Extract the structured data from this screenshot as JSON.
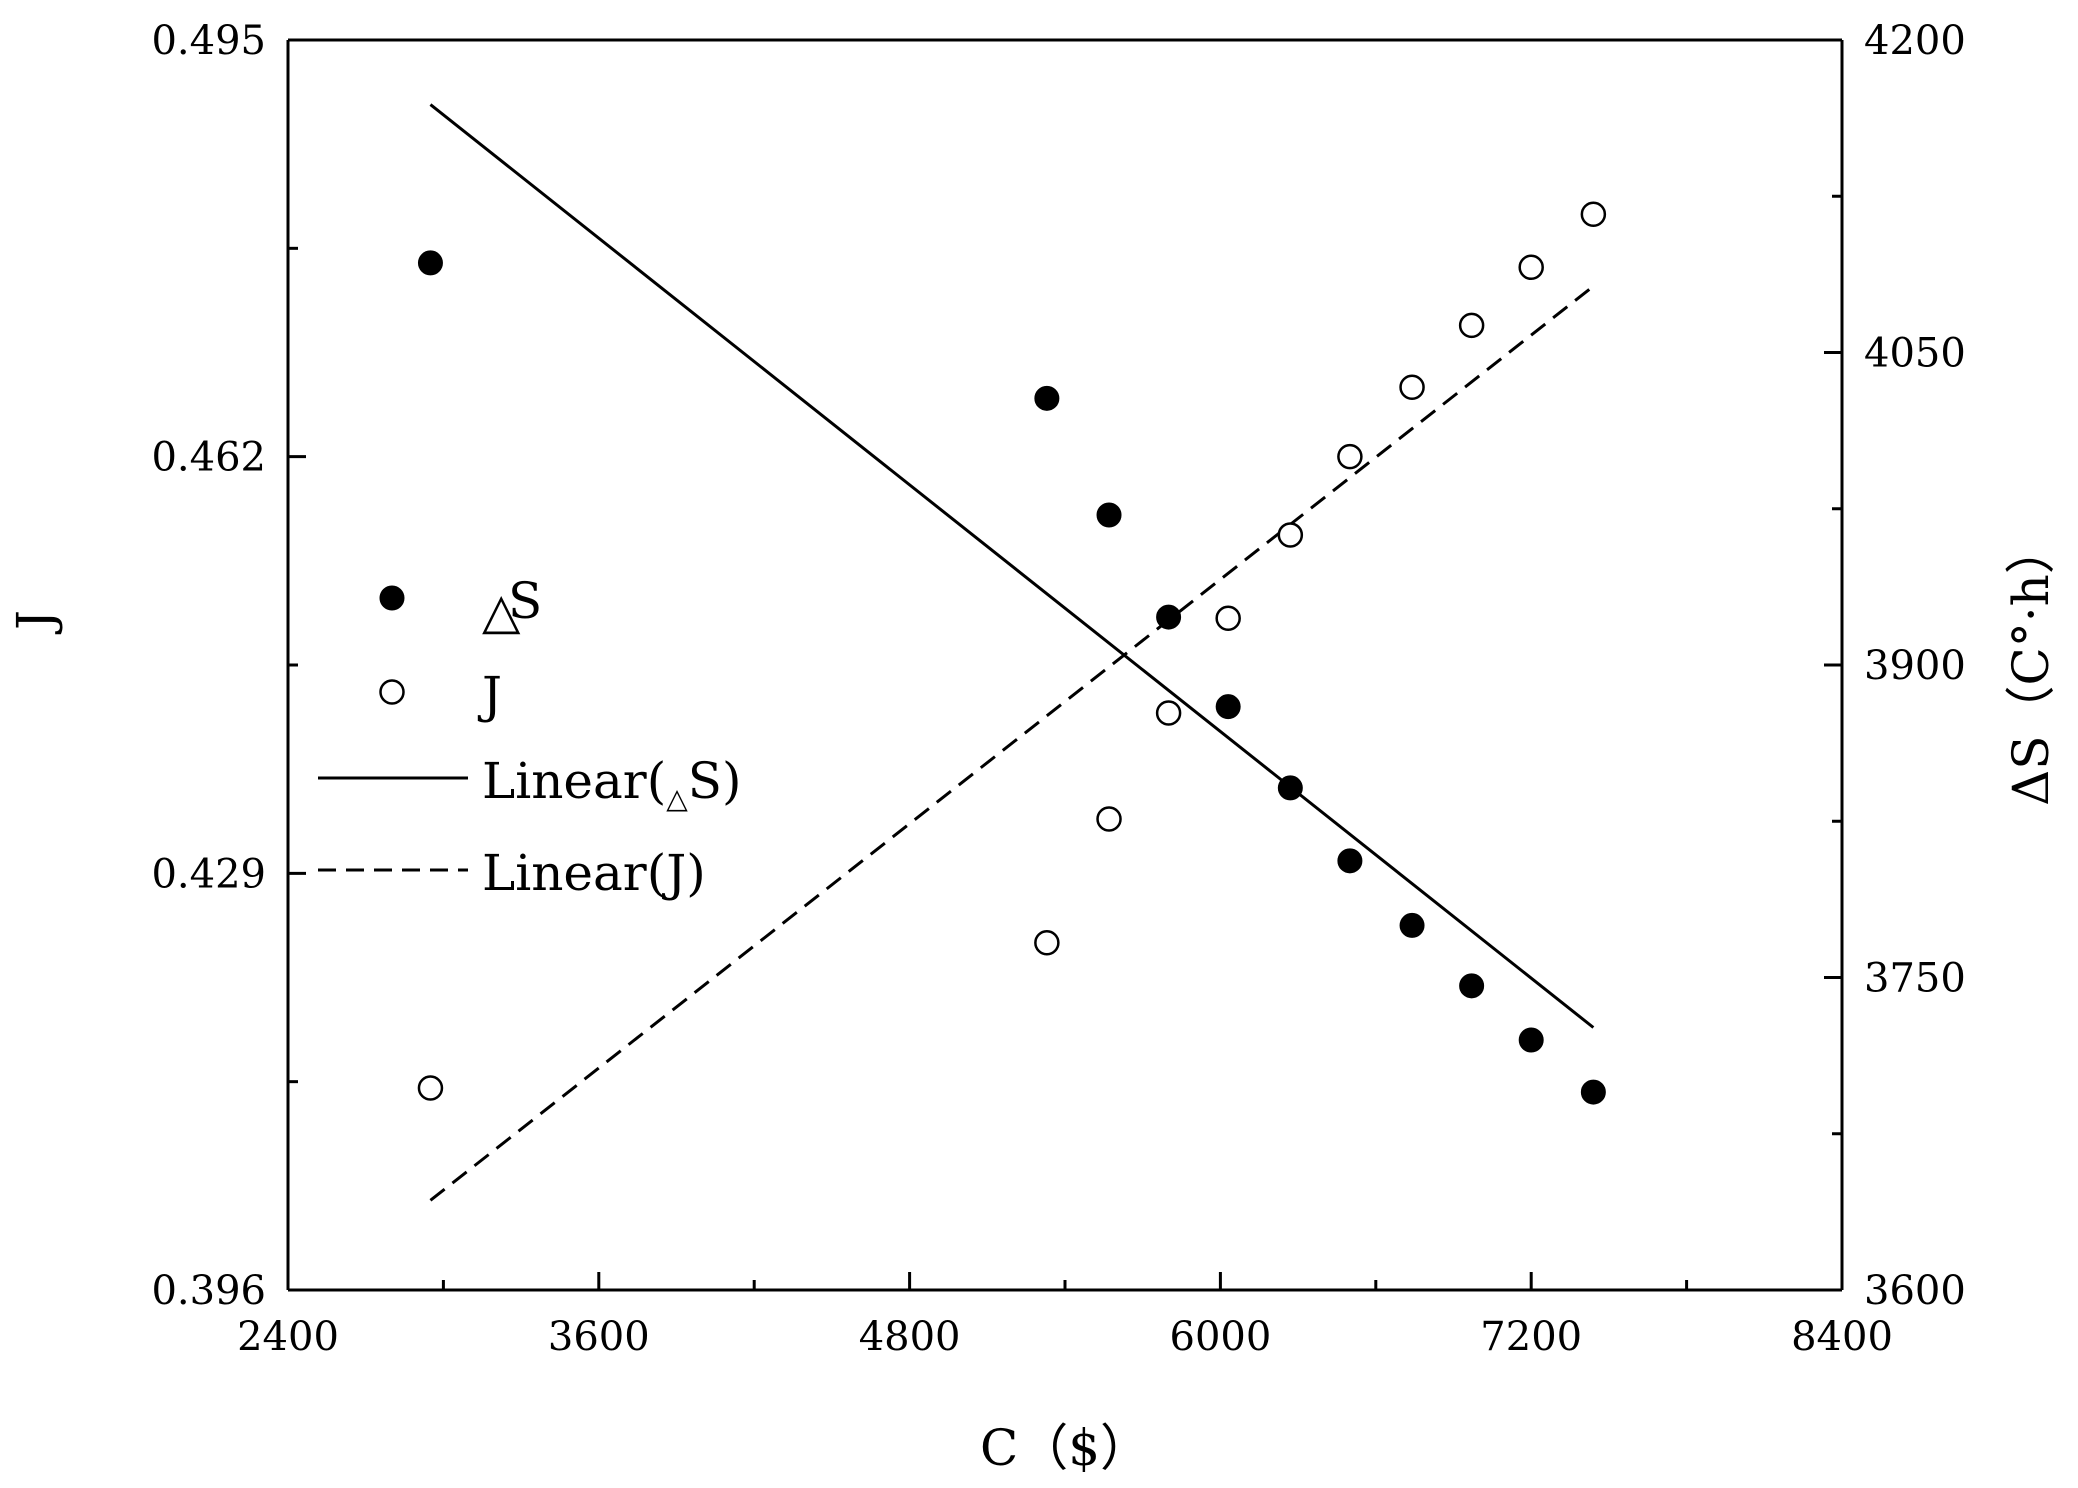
{
  "chart_data": {
    "type": "scatter",
    "xlabel": "C（$）",
    "ylabel_left": "J",
    "ylabel_right": "ΔS（C°·h）",
    "xlim": [
      2400,
      8400
    ],
    "ylim_left": [
      0.396,
      0.495
    ],
    "ylim_right": [
      3600,
      4200
    ],
    "x_ticks": [
      "2400",
      "3600",
      "4800",
      "6000",
      "7200",
      "8400"
    ],
    "y_left_ticks": [
      "0.396",
      "0.429",
      "0.462",
      "0.495"
    ],
    "y_right_ticks": [
      "3600",
      "3750",
      "3900",
      "4050",
      "4200"
    ],
    "series": [
      {
        "name": "△S",
        "axis": "right",
        "marker": "filled-circle",
        "x": [
          2950,
          5330,
          5570,
          5800,
          6030,
          6270,
          6500,
          6740,
          6970,
          7200,
          7440
        ],
        "y": [
          4093,
          4028,
          3972,
          3923,
          3880,
          3841,
          3806,
          3775,
          3746,
          3720,
          3695
        ]
      },
      {
        "name": "J",
        "axis": "left",
        "marker": "open-circle",
        "x": [
          2950,
          5330,
          5570,
          5800,
          6030,
          6270,
          6500,
          6740,
          6970,
          7200,
          7440
        ],
        "y": [
          0.412,
          0.4235,
          0.4333,
          0.4417,
          0.4492,
          0.4558,
          0.462,
          0.4675,
          0.4724,
          0.477,
          0.4812
        ]
      }
    ],
    "fits": [
      {
        "name": "Linear(△S)",
        "axis": "right",
        "style": "solid",
        "x": [
          2950,
          7440
        ],
        "y": [
          4169,
          3726
        ]
      },
      {
        "name": "Linear(J)",
        "axis": "left",
        "style": "dashed",
        "x": [
          2950,
          7440
        ],
        "y": [
          0.4031,
          0.4755
        ]
      }
    ],
    "legend": {
      "placement": "middle-left",
      "entries": [
        {
          "kind": "filled-circle",
          "prefix": "△",
          "label": "S"
        },
        {
          "kind": "open-circle",
          "prefix": "",
          "label": "J"
        },
        {
          "kind": "solid-line",
          "label": "Linear(△S)"
        },
        {
          "kind": "dashed-line",
          "label": "Linear(J)"
        }
      ]
    },
    "grid": false
  }
}
